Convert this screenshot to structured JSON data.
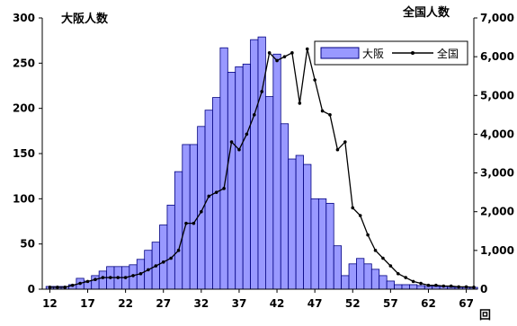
{
  "chart_data": {
    "type": "bar+line",
    "left_axis_title": "大阪人数",
    "right_axis_title": "全国人数",
    "x_unit_label": "回",
    "x_ticks": [
      "12",
      "17",
      "22",
      "27",
      "32",
      "37",
      "42",
      "47",
      "52",
      "57",
      "62",
      "67"
    ],
    "left_ticks": [
      "0",
      "50",
      "100",
      "150",
      "200",
      "250",
      "300"
    ],
    "right_ticks": [
      "0",
      "1,000",
      "2,000",
      "3,000",
      "4,000",
      "5,000",
      "6,000",
      "7,000"
    ],
    "x_range": [
      11,
      68
    ],
    "left_ylim": [
      0,
      300
    ],
    "right_ylim": [
      0,
      7000
    ],
    "legend_position": "top-right",
    "colors": {
      "bar_fill": "#9999ff",
      "bar_stroke": "#000080",
      "line": "#000000"
    },
    "x": [
      12,
      13,
      14,
      15,
      16,
      17,
      18,
      19,
      20,
      21,
      22,
      23,
      24,
      25,
      26,
      27,
      28,
      29,
      30,
      31,
      32,
      33,
      34,
      35,
      36,
      37,
      38,
      39,
      40,
      41,
      42,
      43,
      44,
      45,
      46,
      47,
      48,
      49,
      50,
      51,
      52,
      53,
      54,
      55,
      56,
      57,
      58,
      59,
      60,
      61,
      62,
      63,
      64,
      65,
      66,
      67,
      68
    ],
    "series": [
      {
        "name": "大阪",
        "kind": "bar",
        "axis": "left",
        "values": [
          3,
          3,
          3,
          5,
          12,
          9,
          15,
          20,
          25,
          25,
          25,
          27,
          33,
          43,
          52,
          71,
          93,
          130,
          160,
          160,
          180,
          198,
          212,
          267,
          240,
          246,
          249,
          276,
          279,
          213,
          260,
          183,
          144,
          148,
          138,
          100,
          100,
          95,
          48,
          15,
          28,
          34,
          28,
          22,
          15,
          9,
          5,
          5,
          5,
          4,
          3,
          3,
          3,
          2,
          2,
          2,
          2
        ]
      },
      {
        "name": "全国",
        "kind": "line",
        "axis": "right",
        "values": [
          50,
          50,
          50,
          100,
          150,
          200,
          250,
          300,
          300,
          300,
          300,
          350,
          400,
          500,
          600,
          700,
          800,
          1000,
          1700,
          1700,
          2000,
          2400,
          2500,
          2600,
          3800,
          3600,
          4000,
          4500,
          5100,
          6100,
          5900,
          6000,
          6100,
          4800,
          6200,
          5400,
          4600,
          4500,
          3600,
          3800,
          2100,
          1900,
          1400,
          1000,
          800,
          600,
          400,
          300,
          200,
          150,
          100,
          100,
          80,
          80,
          60,
          60,
          50
        ]
      }
    ]
  }
}
